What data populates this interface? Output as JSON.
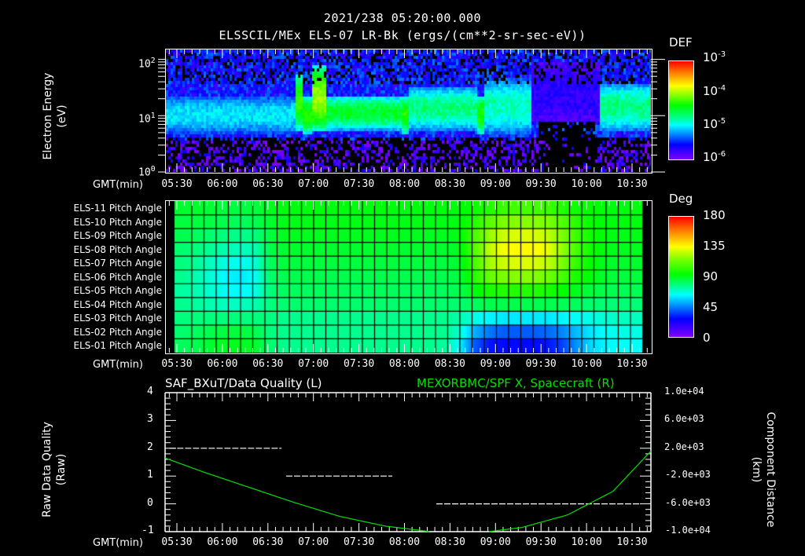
{
  "header": {
    "timestamp": "2021/238 05:20:00.000",
    "subtitle": "ELSSCIL/MEx ELS-07 LR-Bk  (ergs/(cm**2-sr-sec-eV))"
  },
  "x_axis": {
    "label": "GMT(min)",
    "ticks": [
      "05:30",
      "06:00",
      "06:30",
      "07:00",
      "07:30",
      "08:00",
      "08:30",
      "09:00",
      "09:30",
      "10:00",
      "10:30"
    ]
  },
  "panel1": {
    "ylabel_line1": "Electron Energy",
    "ylabel_line2": "(eV)",
    "yticks": [
      {
        "base": "10",
        "exp": "2"
      },
      {
        "base": "10",
        "exp": "1"
      },
      {
        "base": "10",
        "exp": "0"
      }
    ],
    "colorbar": {
      "title": "DEF",
      "labels": [
        {
          "base": "10",
          "exp": "-3"
        },
        {
          "base": "10",
          "exp": "-4"
        },
        {
          "base": "10",
          "exp": "-5"
        },
        {
          "base": "10",
          "exp": "-6"
        }
      ]
    }
  },
  "panel2": {
    "rows": [
      "ELS-11 Pitch Angle",
      "ELS-10 Pitch Angle",
      "ELS-09 Pitch Angle",
      "ELS-08 Pitch Angle",
      "ELS-07 Pitch Angle",
      "ELS-06 Pitch Angle",
      "ELS-05 Pitch Angle",
      "ELS-04 Pitch Angle",
      "ELS-03 Pitch Angle",
      "ELS-02 Pitch Angle",
      "ELS-01 Pitch Angle"
    ],
    "colorbar": {
      "title": "Deg",
      "labels": [
        "180",
        "135",
        "90",
        "45",
        "0"
      ]
    }
  },
  "panel3": {
    "left_title": "SAF_BXuT/Data Quality (L)",
    "right_title": "MEXORBMC/SPF X, Spacecraft (R)",
    "right_title_color": "#00e000",
    "ylabel_left_line1": "Raw Data Quality",
    "ylabel_left_line2": "(Raw)",
    "ylabel_right_line1": "Component Distance",
    "ylabel_right_line2": "(km)",
    "yticks_left": [
      "4",
      "3",
      "2",
      "1",
      "0",
      "-1"
    ],
    "yticks_right": [
      "1.0e+04",
      "6.0e+03",
      "2.0e+03",
      "-2.0e+03",
      "-6.0e+03",
      "-1.0e+04"
    ]
  },
  "chart_data": [
    {
      "type": "heatmap",
      "title": "ELSSCIL/MEx ELS-07 LR-Bk (ergs/(cm**2-sr-sec-eV))",
      "xlabel": "GMT(min)",
      "ylabel": "Electron Energy (eV)",
      "x_range": [
        "05:20",
        "10:40"
      ],
      "y_scale": "log",
      "ylim": [
        1,
        150
      ],
      "colorbar": {
        "label": "DEF",
        "scale": "log",
        "range": [
          1e-06,
          0.001
        ]
      },
      "features": [
        {
          "time": "05:20-06:45",
          "energy_band_eV": [
            5,
            25
          ],
          "level": "~1e-5"
        },
        {
          "time": "06:45-06:50",
          "energy_band_eV": [
            6,
            60
          ],
          "level": "~5e-5"
        },
        {
          "time": "06:55-07:05",
          "energy_band_eV": [
            6,
            80
          ],
          "level": "~1e-4"
        },
        {
          "time": "07:05-07:55",
          "energy_band_eV": [
            6,
            25
          ],
          "level": "~3e-5"
        },
        {
          "time": "08:00-08:45",
          "energy_band_eV": [
            6,
            35
          ],
          "level": "~2e-5"
        },
        {
          "time": "08:50-09:20",
          "energy_band_eV": [
            5,
            50
          ],
          "level": "~1.5e-5"
        },
        {
          "time": "09:20-10:05",
          "energy_band_eV": [
            8,
            100
          ],
          "level": "~2e-6"
        },
        {
          "time": "10:05-10:40",
          "energy_band_eV": [
            6,
            40
          ],
          "level": "~2e-5"
        }
      ]
    },
    {
      "type": "heatmap",
      "title": "ELS Pitch Angle",
      "xlabel": "GMT(min)",
      "categories": [
        "ELS-11",
        "ELS-10",
        "ELS-09",
        "ELS-08",
        "ELS-07",
        "ELS-06",
        "ELS-05",
        "ELS-04",
        "ELS-03",
        "ELS-02",
        "ELS-01"
      ],
      "colorbar": {
        "label": "Deg",
        "range": [
          0,
          180
        ],
        "ticks": [
          0,
          45,
          90,
          135,
          180
        ]
      },
      "columns_time": [
        "05:25",
        "05:35",
        "05:45",
        "05:55",
        "06:05",
        "06:15",
        "06:25",
        "06:35",
        "06:45",
        "06:55",
        "07:05",
        "07:15",
        "07:25",
        "07:35",
        "07:45",
        "07:55",
        "08:05",
        "08:15",
        "08:25",
        "08:35",
        "08:45",
        "08:55",
        "09:05",
        "09:15",
        "09:25",
        "09:35",
        "09:45",
        "09:55",
        "10:05",
        "10:15",
        "10:25",
        "10:35"
      ],
      "values": [
        [
          88,
          88,
          87,
          86,
          85,
          86,
          90,
          92,
          92,
          92,
          92,
          92,
          92,
          92,
          92,
          92,
          92,
          92,
          92,
          92,
          96,
          100,
          104,
          106,
          106,
          104,
          100,
          96,
          94,
          92,
          92,
          92
        ],
        [
          86,
          86,
          85,
          84,
          82,
          84,
          88,
          91,
          91,
          91,
          91,
          91,
          91,
          91,
          91,
          91,
          91,
          91,
          91,
          92,
          100,
          110,
          116,
          118,
          118,
          116,
          108,
          100,
          95,
          92,
          92,
          92
        ],
        [
          84,
          82,
          80,
          78,
          76,
          78,
          86,
          90,
          90,
          90,
          90,
          90,
          90,
          90,
          90,
          90,
          90,
          90,
          90,
          92,
          106,
          120,
          128,
          130,
          130,
          126,
          116,
          104,
          96,
          92,
          91,
          91
        ],
        [
          80,
          78,
          75,
          72,
          70,
          72,
          84,
          88,
          88,
          88,
          88,
          88,
          88,
          88,
          88,
          88,
          88,
          88,
          88,
          90,
          108,
          126,
          134,
          136,
          136,
          132,
          120,
          106,
          96,
          91,
          90,
          90
        ],
        [
          78,
          75,
          70,
          66,
          64,
          68,
          82,
          86,
          86,
          86,
          86,
          86,
          86,
          86,
          86,
          86,
          86,
          86,
          86,
          88,
          106,
          122,
          128,
          130,
          130,
          126,
          116,
          102,
          94,
          89,
          88,
          88
        ],
        [
          76,
          72,
          67,
          62,
          60,
          64,
          80,
          84,
          84,
          84,
          84,
          84,
          84,
          84,
          84,
          84,
          84,
          84,
          84,
          86,
          100,
          112,
          116,
          118,
          118,
          114,
          106,
          98,
          92,
          87,
          86,
          86
        ],
        [
          74,
          72,
          68,
          64,
          62,
          66,
          78,
          82,
          82,
          82,
          82,
          82,
          82,
          82,
          82,
          82,
          82,
          82,
          82,
          84,
          92,
          98,
          100,
          100,
          100,
          98,
          94,
          90,
          86,
          84,
          83,
          83
        ],
        [
          76,
          74,
          72,
          70,
          70,
          72,
          78,
          80,
          80,
          80,
          80,
          80,
          80,
          80,
          80,
          80,
          80,
          80,
          80,
          80,
          82,
          84,
          84,
          84,
          84,
          84,
          83,
          82,
          80,
          79,
          79,
          79
        ],
        [
          78,
          78,
          78,
          78,
          78,
          78,
          78,
          76,
          76,
          76,
          76,
          76,
          76,
          76,
          76,
          76,
          76,
          76,
          76,
          72,
          66,
          62,
          60,
          60,
          60,
          60,
          62,
          64,
          66,
          68,
          70,
          70
        ],
        [
          80,
          82,
          84,
          86,
          86,
          84,
          78,
          76,
          76,
          76,
          76,
          76,
          76,
          76,
          76,
          76,
          76,
          76,
          76,
          68,
          52,
          44,
          40,
          40,
          40,
          42,
          46,
          54,
          60,
          64,
          66,
          66
        ],
        [
          82,
          84,
          88,
          90,
          90,
          88,
          80,
          76,
          76,
          76,
          76,
          76,
          76,
          76,
          76,
          76,
          76,
          76,
          74,
          62,
          40,
          30,
          28,
          28,
          28,
          30,
          36,
          48,
          58,
          62,
          64,
          64
        ]
      ]
    },
    {
      "type": "line",
      "title": "SAF_BXuT/Data Quality (L) / MEXORBMC/SPF X, Spacecraft (R)",
      "xlabel": "GMT(min)",
      "series": [
        {
          "name": "SAF_BXuT/Data Quality (L)",
          "axis": "left",
          "color": "#ffffff",
          "style": "dashed-steps",
          "x": [
            "05:25",
            "06:40",
            "06:41",
            "07:50",
            "08:20",
            "10:35"
          ],
          "values": [
            2,
            2,
            1,
            1,
            0,
            0
          ]
        },
        {
          "name": "MEXORBMC/SPF X, Spacecraft (R)",
          "axis": "right",
          "color": "#00e000",
          "x": [
            "05:20",
            "05:45",
            "06:15",
            "06:45",
            "07:15",
            "07:45",
            "08:15",
            "08:45",
            "09:15",
            "09:45",
            "10:15",
            "10:40"
          ],
          "values": [
            600,
            -1400,
            -3600,
            -5800,
            -7800,
            -9200,
            -10000,
            -10200,
            -9400,
            -7600,
            -4200,
            1600
          ]
        }
      ],
      "ylim_left": [
        -1,
        4
      ],
      "ylim_right": [
        -10000,
        10000
      ],
      "ylabel_left": "Raw Data Quality (Raw)",
      "ylabel_right": "Component Distance (km)"
    }
  ]
}
